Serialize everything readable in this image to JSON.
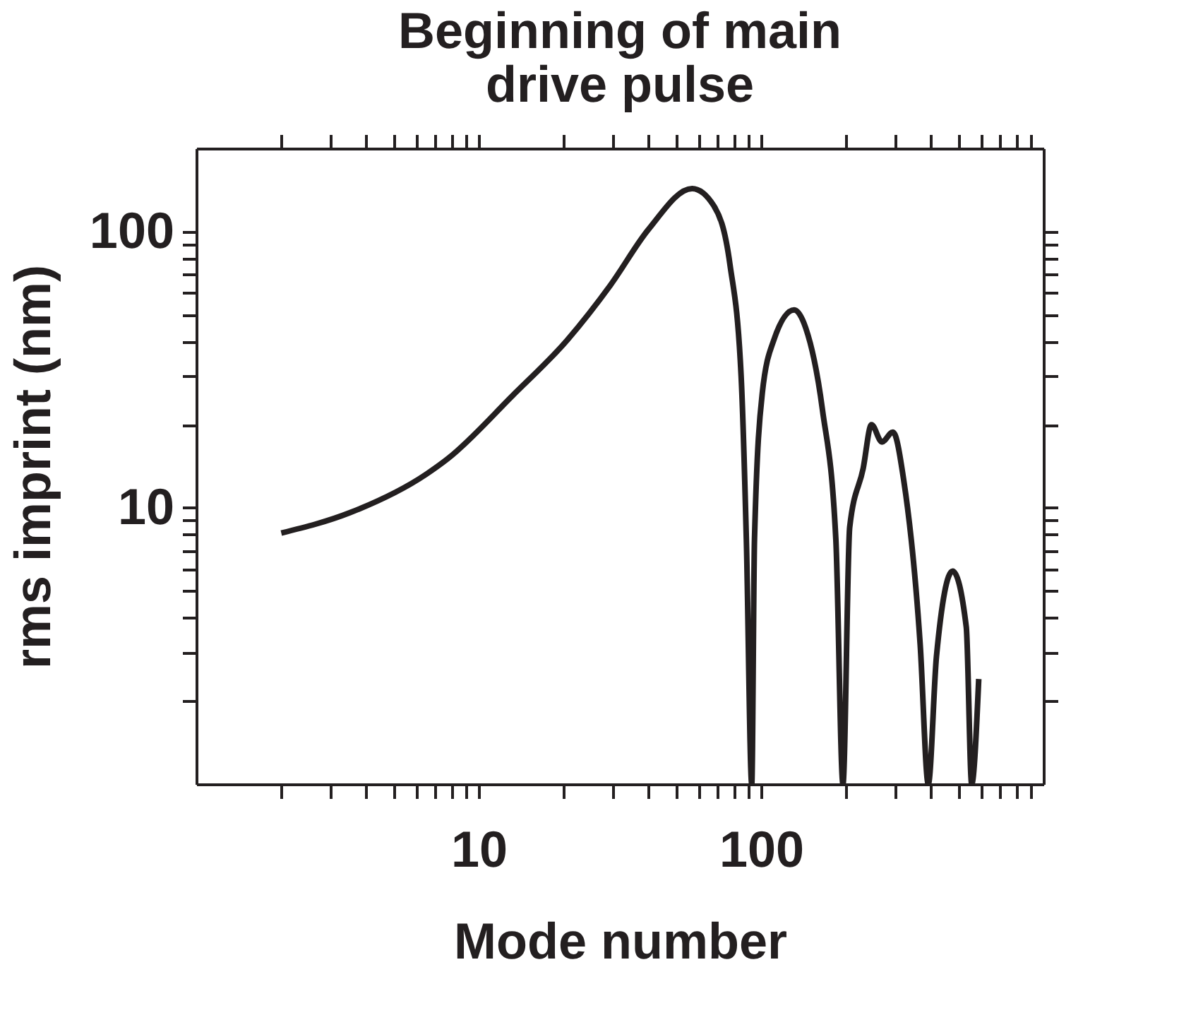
{
  "chart_data": {
    "type": "line",
    "title": "Beginning of main\ndrive pulse",
    "xlabel": "Mode number",
    "ylabel": "rms imprint (nm)",
    "log": "xy",
    "grid": false,
    "line_style": "solid",
    "xlim": [
      1,
      1000
    ],
    "ylim": [
      1,
      200
    ],
    "xticks": [
      {
        "value": 2,
        "label": null
      },
      {
        "value": 3,
        "label": null
      },
      {
        "value": 4,
        "label": null
      },
      {
        "value": 5,
        "label": null
      },
      {
        "value": 6,
        "label": null
      },
      {
        "value": 7,
        "label": null
      },
      {
        "value": 8,
        "label": null
      },
      {
        "value": 9,
        "label": null
      },
      10,
      {
        "value": 20,
        "label": null
      },
      {
        "value": 30,
        "label": null
      },
      {
        "value": 40,
        "label": null
      },
      {
        "value": 50,
        "label": null
      },
      {
        "value": 60,
        "label": null
      },
      {
        "value": 70,
        "label": null
      },
      {
        "value": 80,
        "label": null
      },
      {
        "value": 90,
        "label": null
      },
      100,
      {
        "value": 200,
        "label": null
      },
      {
        "value": 300,
        "label": null
      },
      {
        "value": 400,
        "label": null
      },
      {
        "value": 500,
        "label": null
      },
      {
        "value": 600,
        "label": null
      },
      {
        "value": 700,
        "label": null
      },
      {
        "value": 800,
        "label": null
      },
      {
        "value": 900,
        "label": null
      }
    ],
    "yticks": [
      {
        "value": 2,
        "label": null
      },
      {
        "value": 3,
        "label": null
      },
      {
        "value": 4,
        "label": null
      },
      {
        "value": 5,
        "label": null
      },
      {
        "value": 6,
        "label": null
      },
      {
        "value": 7,
        "label": null
      },
      {
        "value": 8,
        "label": null
      },
      {
        "value": 9,
        "label": null
      },
      10,
      {
        "value": 20,
        "label": null
      },
      {
        "value": 30,
        "label": null
      },
      {
        "value": 40,
        "label": null
      },
      {
        "value": 50,
        "label": null
      },
      {
        "value": 60,
        "label": null
      },
      {
        "value": 70,
        "label": null
      },
      {
        "value": 80,
        "label": null
      },
      {
        "value": 90,
        "label": null
      },
      100
    ],
    "series": [
      {
        "color": "#231f20",
        "x": [
          2.0,
          3.5,
          6.5,
          7.8,
          13.2,
          20.6,
          29.3,
          40,
          57,
          68,
          77.6,
          85,
          88.7,
          92.7,
          94.8,
          101,
          111,
          131,
          144,
          165,
          184,
          195,
          206,
          230,
          246,
          268,
          293,
          320,
          366,
          391,
          418,
          477,
          533,
          557,
          590
        ],
        "values": [
          8.1,
          9.6,
          13.2,
          15.1,
          25.5,
          40.5,
          64,
          102,
          143,
          124,
          76,
          30,
          7.7,
          1,
          7.7,
          26,
          40.5,
          52,
          44.7,
          22.6,
          7.7,
          1,
          8.5,
          13.9,
          20,
          17.3,
          18.8,
          12.6,
          3.2,
          1,
          2.9,
          5.9,
          3.7,
          1,
          2.4
        ]
      }
    ]
  }
}
